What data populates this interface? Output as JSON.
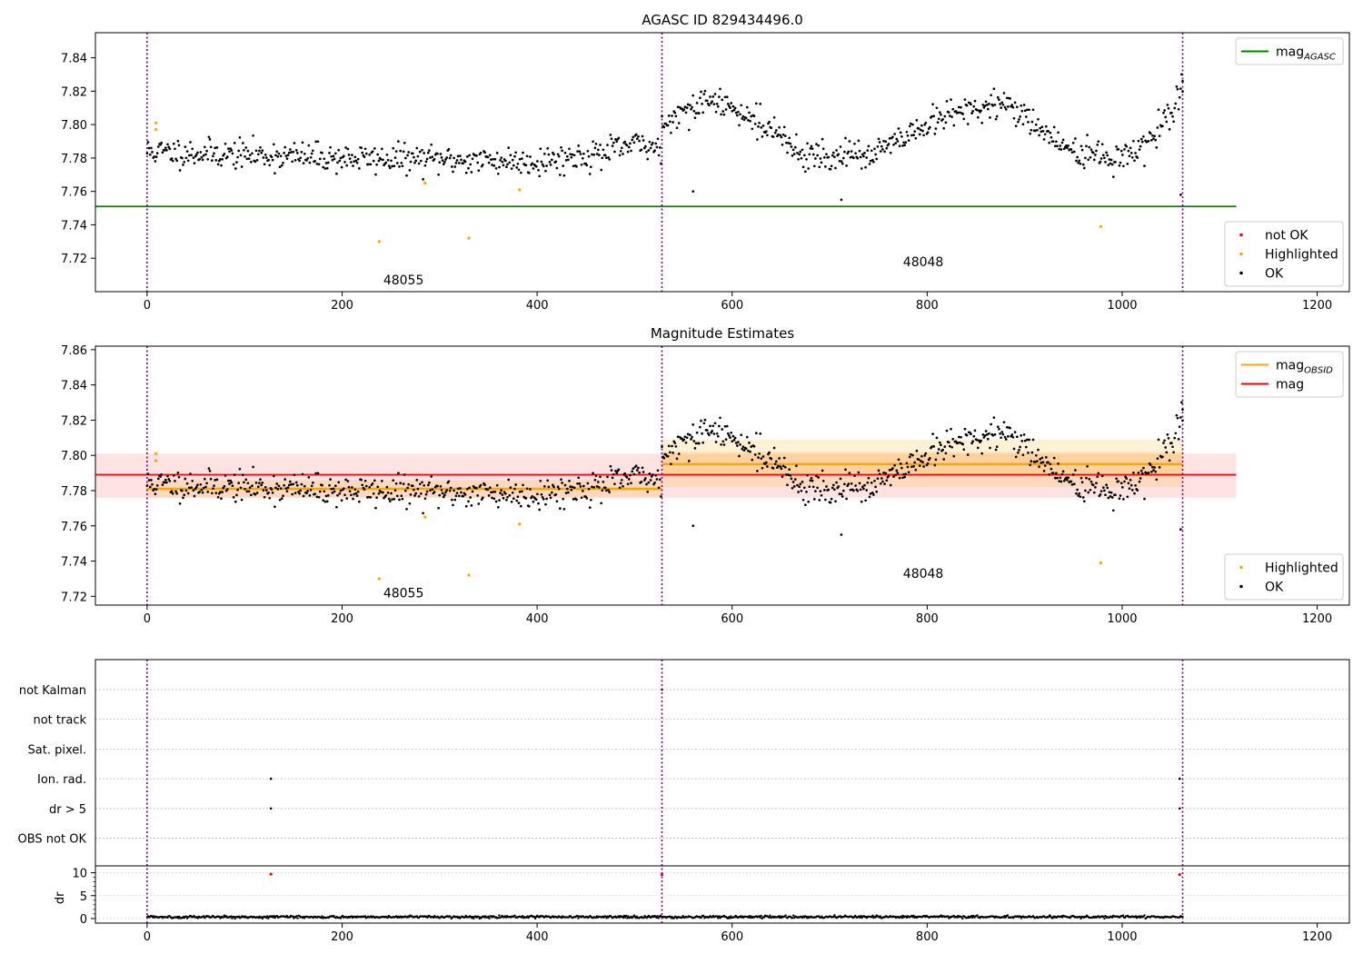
{
  "chart_data": [
    {
      "type": "scatter",
      "title": "AGASC ID 829434496.0",
      "xlim": [
        -53,
        1233
      ],
      "ylim": [
        7.7,
        7.855
      ],
      "xticks": [
        0,
        200,
        400,
        600,
        800,
        1000,
        1200
      ],
      "yticks": [
        7.72,
        7.74,
        7.76,
        7.78,
        7.8,
        7.82,
        7.84
      ],
      "obs_boundaries": [
        0,
        528,
        1062
      ],
      "obs_labels": [
        {
          "text": "48055",
          "x": 263,
          "y": 7.707
        },
        {
          "text": "48048",
          "x": 796,
          "y": 7.718
        }
      ],
      "hlines": [
        {
          "name": "mag_AGASC",
          "y": 7.751,
          "x": [
            -53,
            1117
          ],
          "color": "#008000"
        }
      ],
      "legends": [
        {
          "loc": "upper-right",
          "entries": [
            {
              "label": "mag",
              "sub": "AGASC",
              "color": "#008000",
              "marker": "line"
            }
          ]
        },
        {
          "loc": "lower-right",
          "entries": [
            {
              "label": "not OK",
              "color": "#ff0000",
              "marker": "dot"
            },
            {
              "label": "Highlighted",
              "color": "#ffa500",
              "marker": "dot"
            },
            {
              "label": "OK",
              "color": "#000000",
              "marker": "dot"
            }
          ]
        }
      ],
      "highlighted": [
        [
          9,
          7.801
        ],
        [
          9,
          7.797
        ],
        [
          238,
          7.73
        ],
        [
          285,
          7.765
        ],
        [
          330,
          7.732
        ],
        [
          382,
          7.761
        ],
        [
          978,
          7.739
        ]
      ],
      "ok_extra": [
        [
          560,
          7.76
        ],
        [
          712,
          7.755
        ],
        [
          1060,
          7.758
        ],
        [
          1062,
          7.826
        ]
      ],
      "ok_segments": [
        {
          "x0": 0,
          "x1": 527,
          "n": 500,
          "seed": 11,
          "trend": [
            [
              0,
              7.784
            ],
            [
              100,
              7.782
            ],
            [
              200,
              7.78
            ],
            [
              300,
              7.779
            ],
            [
              400,
              7.778
            ],
            [
              470,
              7.783
            ],
            [
              500,
              7.788
            ],
            [
              527,
              7.786
            ]
          ],
          "noise": 0.0085
        },
        {
          "x0": 528,
          "x1": 1062,
          "n": 520,
          "seed": 29,
          "trend": [
            [
              528,
              7.799
            ],
            [
              550,
              7.806
            ],
            [
              575,
              7.814
            ],
            [
              610,
              7.808
            ],
            [
              640,
              7.797
            ],
            [
              665,
              7.784
            ],
            [
              700,
              7.78
            ],
            [
              740,
              7.782
            ],
            [
              780,
              7.792
            ],
            [
              820,
              7.806
            ],
            [
              860,
              7.81
            ],
            [
              880,
              7.812
            ],
            [
              905,
              7.804
            ],
            [
              930,
              7.79
            ],
            [
              960,
              7.782
            ],
            [
              990,
              7.78
            ],
            [
              1020,
              7.784
            ],
            [
              1040,
              7.797
            ],
            [
              1062,
              7.822
            ]
          ],
          "noise": 0.0085
        }
      ]
    },
    {
      "type": "scatter",
      "title": "Magnitude Estimates",
      "xlim": [
        -53,
        1233
      ],
      "ylim": [
        7.715,
        7.862
      ],
      "xticks": [
        0,
        200,
        400,
        600,
        800,
        1000,
        1200
      ],
      "yticks": [
        7.72,
        7.74,
        7.76,
        7.78,
        7.8,
        7.82,
        7.84,
        7.86
      ],
      "obs_boundaries": [
        0,
        528,
        1062
      ],
      "obs_labels": [
        {
          "text": "48055",
          "x": 263,
          "y": 7.722
        },
        {
          "text": "48048",
          "x": 796,
          "y": 7.733
        }
      ],
      "bands": [
        {
          "x": [
            -53,
            1117
          ],
          "y": [
            7.776,
            7.801
          ],
          "color": "#ff0000",
          "opacity": 0.11
        },
        {
          "x": [
            0,
            528
          ],
          "y": [
            7.776,
            7.786
          ],
          "color": "#ffa500",
          "opacity": 0.16
        },
        {
          "x": [
            528,
            1062
          ],
          "y": [
            7.782,
            7.809
          ],
          "color": "#ffa500",
          "opacity": 0.16
        },
        {
          "x": [
            528,
            1062
          ],
          "y": [
            7.788,
            7.802
          ],
          "color": "#ffa500",
          "opacity": 0.16
        }
      ],
      "hlines": [
        {
          "name": "mag",
          "y": 7.789,
          "x": [
            -53,
            1117
          ],
          "color": "#ff0000"
        },
        {
          "name": "mag_OBSID 48055",
          "y": 7.781,
          "x": [
            0,
            528
          ],
          "color": "#ffa500"
        },
        {
          "name": "mag_OBSID 48048",
          "y": 7.795,
          "x": [
            528,
            1062
          ],
          "color": "#ffa500"
        }
      ],
      "legends": [
        {
          "loc": "upper-right",
          "entries": [
            {
              "label": "mag",
              "sub": "OBSID",
              "color": "#ffa500",
              "marker": "line"
            },
            {
              "label": "mag",
              "color": "#ff0000",
              "marker": "line"
            }
          ]
        },
        {
          "loc": "lower-right",
          "entries": [
            {
              "label": "Highlighted",
              "color": "#ffa500",
              "marker": "dot"
            },
            {
              "label": "OK",
              "color": "#000000",
              "marker": "dot"
            }
          ]
        }
      ],
      "highlighted": [
        [
          9,
          7.801
        ],
        [
          9,
          7.797
        ],
        [
          238,
          7.73
        ],
        [
          285,
          7.765
        ],
        [
          330,
          7.732
        ],
        [
          382,
          7.761
        ],
        [
          978,
          7.739
        ]
      ],
      "ok_extra": [
        [
          560,
          7.76
        ],
        [
          712,
          7.755
        ],
        [
          1060,
          7.758
        ],
        [
          1062,
          7.826
        ]
      ],
      "ok_segments": [
        {
          "x0": 0,
          "x1": 527,
          "n": 500,
          "seed": 11,
          "trend": [
            [
              0,
              7.784
            ],
            [
              100,
              7.782
            ],
            [
              200,
              7.78
            ],
            [
              300,
              7.779
            ],
            [
              400,
              7.778
            ],
            [
              470,
              7.783
            ],
            [
              500,
              7.788
            ],
            [
              527,
              7.786
            ]
          ],
          "noise": 0.0085
        },
        {
          "x0": 528,
          "x1": 1062,
          "n": 520,
          "seed": 29,
          "trend": [
            [
              528,
              7.799
            ],
            [
              550,
              7.806
            ],
            [
              575,
              7.814
            ],
            [
              610,
              7.808
            ],
            [
              640,
              7.797
            ],
            [
              665,
              7.784
            ],
            [
              700,
              7.78
            ],
            [
              740,
              7.782
            ],
            [
              780,
              7.792
            ],
            [
              820,
              7.806
            ],
            [
              860,
              7.81
            ],
            [
              880,
              7.812
            ],
            [
              905,
              7.804
            ],
            [
              930,
              7.79
            ],
            [
              960,
              7.782
            ],
            [
              990,
              7.78
            ],
            [
              1020,
              7.784
            ],
            [
              1040,
              7.797
            ],
            [
              1062,
              7.822
            ]
          ],
          "noise": 0.0085
        }
      ]
    },
    {
      "type": "scatter",
      "title": "",
      "xlim": [
        -53,
        1233
      ],
      "xticks": [
        0,
        200,
        400,
        600,
        800,
        1000,
        1200
      ],
      "obs_boundaries": [
        0,
        528,
        1062
      ],
      "flag_categories": [
        "not Kalman",
        "not track",
        "Sat. pixel.",
        "Ion. rad.",
        "dr > 5",
        "OBS not OK"
      ],
      "flag_points": [
        {
          "flag": "not Kalman",
          "x": [
            528
          ]
        },
        {
          "flag": "Ion. rad.",
          "x": [
            127,
            1059
          ]
        },
        {
          "flag": "dr > 5",
          "x": [
            127,
            1059
          ]
        }
      ],
      "dr": {
        "ylabel": "dr",
        "ylim": [
          -1,
          11.5
        ],
        "yticks": [
          0,
          5,
          10
        ],
        "red_points": [
          [
            127,
            9.7
          ],
          [
            528,
            9.6
          ],
          [
            1059,
            9.6
          ]
        ],
        "baseline": {
          "x0": 0,
          "x1": 1062,
          "n": 1060,
          "seed": 5,
          "level": 0.35,
          "noise": 0.22
        }
      }
    }
  ]
}
